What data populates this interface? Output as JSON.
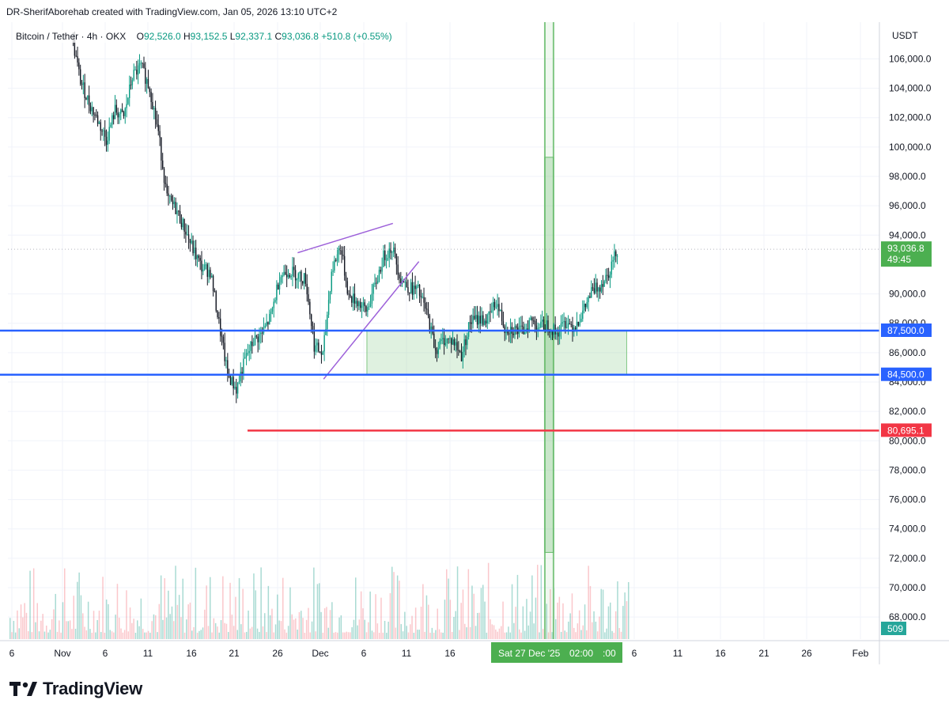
{
  "attribution": "DR-SherifAborehab created with TradingView.com, Jan 05, 2026 13:10 UTC+2",
  "legend": {
    "symbol": "Bitcoin / Tether",
    "interval": "4h",
    "exchange": "OKX",
    "o_label": "O",
    "open": "92,526.0",
    "h_label": "H",
    "high": "93,152.5",
    "l_label": "L",
    "low": "92,337.1",
    "c_label": "C",
    "close": "93,036.8",
    "change": "+510.8 (+0.55%)"
  },
  "currency": "USDT",
  "brand": "TradingView",
  "colors": {
    "up": "#089981",
    "down": "#131722",
    "support_line": "#2962ff",
    "red_line": "#f23645",
    "zone_fill": "#c8e6c9",
    "zone_border": "#81c784",
    "trendline": "#9c5fd9",
    "price_label": "#4caf50"
  },
  "chart_data": {
    "type": "candlestick",
    "x_axis_ticks": [
      "6",
      "Nov",
      "6",
      "11",
      "16",
      "21",
      "26",
      "Dec",
      "6",
      "11",
      "16",
      "Sat 27 Dec '25",
      "02:00",
      ":00",
      "6",
      "11",
      "16",
      "21",
      "26",
      "Feb"
    ],
    "y_axis_ticks": [
      "106,000.0",
      "104,000.0",
      "102,000.0",
      "100,000.0",
      "98,000.0",
      "96,000.0",
      "94,000.0",
      "90,000.0",
      "88,000.0",
      "86,000.0",
      "84,000.0",
      "82,000.0",
      "80,000.0",
      "78,000.0",
      "76,000.0",
      "74,000.0",
      "72,000.0",
      "70,000.0",
      "68,000.0"
    ],
    "ylim": [
      66500,
      108500
    ],
    "horizontal_lines": [
      {
        "value": 87500,
        "label": "87,500.0",
        "color": "#2962ff"
      },
      {
        "value": 84500,
        "label": "84,500.0",
        "color": "#2962ff"
      },
      {
        "value": 80695.1,
        "label": "80,695.1",
        "color": "#f23645"
      }
    ],
    "current_price": {
      "value": 93036.8,
      "label": "93,036.8",
      "countdown": "49:45"
    },
    "volume_label": "509",
    "zone": {
      "y_range": [
        84500,
        87500
      ],
      "x_range": [
        "Dec 7",
        "Jan 6"
      ]
    },
    "crosshair_box": {
      "x_range": [
        "Dec 27",
        "Dec 28"
      ],
      "y_range": [
        72400,
        99300
      ]
    },
    "trendlines": [
      {
        "from": [
          "Nov 29",
          92800
        ],
        "to": [
          "Dec 10",
          94800
        ]
      },
      {
        "from": [
          "Dec 2",
          84200
        ],
        "to": [
          "Dec 13",
          92200
        ]
      }
    ],
    "price_path": [
      [
        "Nov 3",
        107500
      ],
      [
        "Nov 4",
        104500
      ],
      [
        "Nov 5",
        103000
      ],
      [
        "Nov 6",
        101800
      ],
      [
        "Nov 7",
        100500
      ],
      [
        "Nov 8",
        102500
      ],
      [
        "Nov 9",
        102000
      ],
      [
        "Nov 10",
        104800
      ],
      [
        "Nov 11",
        105500
      ],
      [
        "Nov 12",
        104000
      ],
      [
        "Nov 13",
        101000
      ],
      [
        "Nov 14",
        96500
      ],
      [
        "Nov 15",
        95800
      ],
      [
        "Nov 16",
        94500
      ],
      [
        "Nov 17",
        93000
      ],
      [
        "Nov 18",
        91800
      ],
      [
        "Nov 19",
        91500
      ],
      [
        "Nov 20",
        88000
      ],
      [
        "Nov 21",
        84500
      ],
      [
        "Nov 22",
        83500
      ],
      [
        "Nov 23",
        85500
      ],
      [
        "Nov 24",
        86800
      ],
      [
        "Nov 25",
        87300
      ],
      [
        "Nov 26",
        88500
      ],
      [
        "Nov 27",
        91200
      ],
      [
        "Nov 28",
        91600
      ],
      [
        "Nov 29",
        91300
      ],
      [
        "Nov 30",
        91000
      ],
      [
        "Dec 1",
        86500
      ],
      [
        "Dec 2",
        85800
      ],
      [
        "Dec 3",
        91500
      ],
      [
        "Dec 4",
        93300
      ],
      [
        "Dec 5",
        89800
      ],
      [
        "Dec 6",
        89500
      ],
      [
        "Dec 7",
        88800
      ],
      [
        "Dec 8",
        90500
      ],
      [
        "Dec 9",
        92500
      ],
      [
        "Dec 10",
        93200
      ],
      [
        "Dec 11",
        91000
      ],
      [
        "Dec 12",
        90400
      ],
      [
        "Dec 13",
        90200
      ],
      [
        "Dec 14",
        88700
      ],
      [
        "Dec 15",
        86200
      ],
      [
        "Dec 16",
        86900
      ],
      [
        "Dec 17",
        86800
      ],
      [
        "Dec 18",
        85800
      ],
      [
        "Dec 19",
        88100
      ],
      [
        "Dec 20",
        88300
      ],
      [
        "Dec 21",
        88200
      ],
      [
        "Dec 22",
        89500
      ],
      [
        "Dec 23",
        87700
      ],
      [
        "Dec 24",
        87600
      ],
      [
        "Dec 25",
        87400
      ],
      [
        "Dec 26",
        88200
      ],
      [
        "Dec 27",
        87800
      ],
      [
        "Dec 28",
        87900
      ],
      [
        "Dec 29",
        87300
      ],
      [
        "Dec 30",
        88100
      ],
      [
        "Dec 31",
        87800
      ],
      [
        "Jan 1",
        88700
      ],
      [
        "Jan 2",
        90100
      ],
      [
        "Jan 3",
        90600
      ],
      [
        "Jan 4",
        91500
      ],
      [
        "Jan 5",
        93036.8
      ]
    ]
  }
}
